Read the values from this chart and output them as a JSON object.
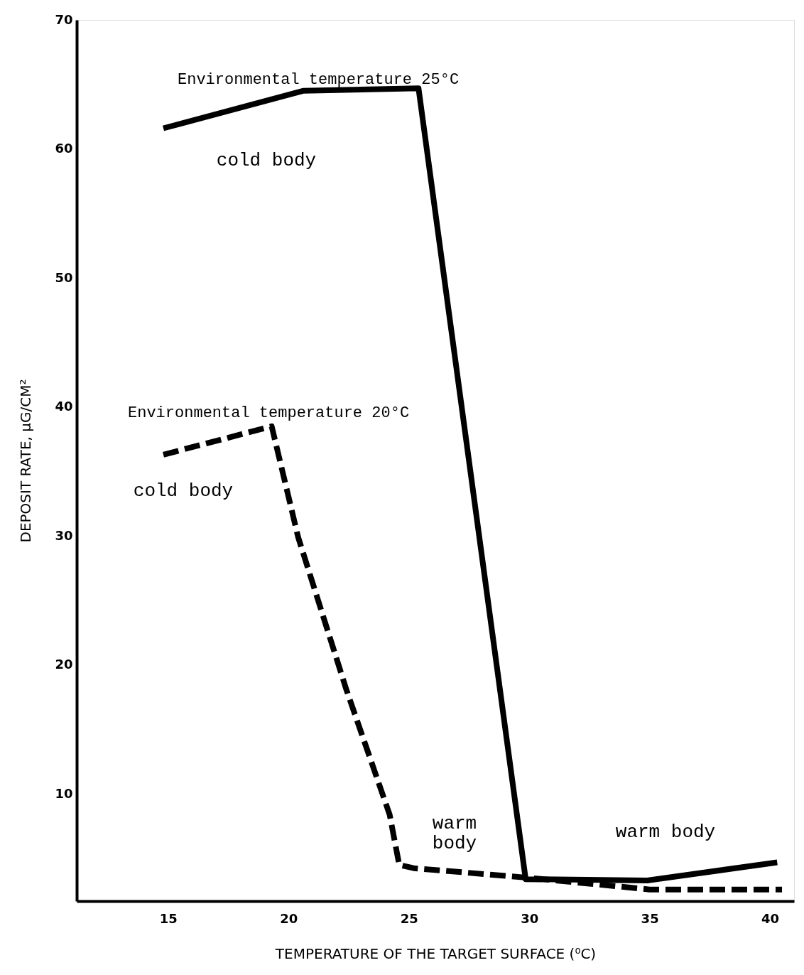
{
  "chart_data": {
    "type": "line",
    "xlabel": "TEMPERATURE OF THE TARGET SURFACE (⁰C)",
    "ylabel": "DEPOSIT RATE, μG/CM²",
    "xlim": [
      11.2,
      41
    ],
    "ylim": [
      1.7,
      70
    ],
    "xticks": [
      15,
      20,
      25,
      30,
      35,
      40
    ],
    "yticks": [
      10,
      20,
      30,
      40,
      50,
      60,
      70
    ],
    "grid": false,
    "marker": "none",
    "series": [
      {
        "name": "Environmental temperature 25°C",
        "color": "#000000",
        "line_style": "solid",
        "x": [
          14.8,
          20.6,
          25.4,
          29.85,
          34.9,
          40.3
        ],
        "values": [
          61.6,
          64.5,
          64.7,
          3.4,
          3.3,
          4.7
        ]
      },
      {
        "name": "Environmental temperature 20°C",
        "color": "#000000",
        "line_style": "dashed",
        "x": [
          14.8,
          19.3,
          20.4,
          22.4,
          24.2,
          24.6,
          25.2,
          30,
          35,
          40.5
        ],
        "values": [
          36.3,
          38.5,
          29.9,
          18.1,
          8.4,
          4.5,
          4.25,
          3.5,
          2.6,
          2.6
        ]
      }
    ],
    "annotations": [
      "cold body",
      "cold body",
      "warm\nbody",
      "warm body"
    ]
  }
}
